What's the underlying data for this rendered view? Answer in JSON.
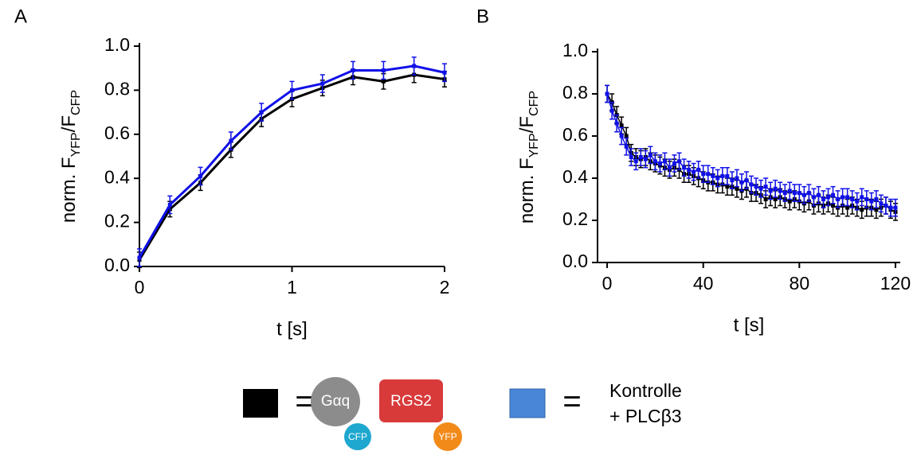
{
  "chart_data": [
    {
      "type": "line",
      "panel": "A",
      "xlabel": "t [s]",
      "ylabel": [
        "norm. F",
        "YFP",
        "/F",
        "CFP"
      ],
      "x": [
        0,
        0.2,
        0.4,
        0.6,
        0.8,
        1.0,
        1.2,
        1.4,
        1.6,
        1.8,
        2.0
      ],
      "xlim": [
        0,
        2
      ],
      "xticks": [
        0,
        1,
        2
      ],
      "ylim": [
        0,
        1
      ],
      "yticks": [
        {
          "value": 0,
          "label": "0.0"
        },
        0.2,
        0.4,
        0.6,
        0.8,
        {
          "value": 1,
          "label": "1.0"
        }
      ],
      "grid": false,
      "series": [
        {
          "color": "#000000",
          "error": 0.035,
          "values": [
            0.03,
            0.26,
            0.38,
            0.53,
            0.67,
            0.76,
            0.81,
            0.86,
            0.84,
            0.87,
            0.85
          ]
        },
        {
          "color": "#1010e8",
          "error": 0.04,
          "values": [
            0.04,
            0.28,
            0.41,
            0.57,
            0.7,
            0.8,
            0.83,
            0.89,
            0.89,
            0.91,
            0.88
          ]
        }
      ]
    },
    {
      "type": "line",
      "panel": "B",
      "xlabel": "t [s]",
      "ylabel": [
        "norm. F",
        "YFP",
        "/F",
        "CFP"
      ],
      "x": [
        0,
        2,
        4,
        6,
        8,
        10,
        12,
        14,
        16,
        18,
        20,
        22,
        24,
        26,
        28,
        30,
        32,
        34,
        36,
        38,
        40,
        42,
        44,
        46,
        48,
        50,
        52,
        54,
        56,
        58,
        60,
        62,
        64,
        66,
        68,
        70,
        72,
        74,
        76,
        78,
        80,
        82,
        84,
        86,
        88,
        90,
        92,
        94,
        96,
        98,
        100,
        102,
        104,
        106,
        108,
        110,
        112,
        114,
        116,
        118,
        120
      ],
      "xlim": [
        -4,
        122
      ],
      "xticks": [
        0,
        40,
        80,
        120
      ],
      "ylim": [
        0,
        1
      ],
      "yticks": [
        {
          "value": 0,
          "label": "0.0"
        },
        0.2,
        0.4,
        0.6,
        0.8,
        {
          "value": 1,
          "label": "1.0"
        }
      ],
      "grid": false,
      "series": [
        {
          "color": "#000000",
          "error": 0.04,
          "values": [
            0.8,
            0.76,
            0.7,
            0.65,
            0.6,
            0.52,
            0.5,
            0.49,
            0.5,
            0.48,
            0.47,
            0.46,
            0.45,
            0.44,
            0.45,
            0.44,
            0.42,
            0.42,
            0.41,
            0.4,
            0.39,
            0.38,
            0.38,
            0.37,
            0.37,
            0.36,
            0.36,
            0.35,
            0.34,
            0.35,
            0.33,
            0.33,
            0.32,
            0.3,
            0.31,
            0.3,
            0.31,
            0.3,
            0.29,
            0.3,
            0.29,
            0.28,
            0.29,
            0.27,
            0.28,
            0.27,
            0.28,
            0.27,
            0.26,
            0.27,
            0.26,
            0.27,
            0.26,
            0.25,
            0.26,
            0.26,
            0.25,
            0.26,
            0.27,
            0.25,
            0.24
          ]
        },
        {
          "color": "#1010e8",
          "error": 0.04,
          "values": [
            0.8,
            0.72,
            0.66,
            0.6,
            0.55,
            0.5,
            0.48,
            0.5,
            0.49,
            0.51,
            0.48,
            0.47,
            0.48,
            0.45,
            0.47,
            0.48,
            0.45,
            0.44,
            0.43,
            0.44,
            0.42,
            0.42,
            0.41,
            0.4,
            0.41,
            0.41,
            0.39,
            0.4,
            0.38,
            0.39,
            0.37,
            0.36,
            0.35,
            0.36,
            0.34,
            0.35,
            0.34,
            0.33,
            0.34,
            0.33,
            0.33,
            0.32,
            0.33,
            0.31,
            0.32,
            0.3,
            0.31,
            0.32,
            0.3,
            0.31,
            0.31,
            0.3,
            0.29,
            0.31,
            0.3,
            0.29,
            0.3,
            0.28,
            0.27,
            0.26,
            0.26
          ]
        }
      ]
    }
  ],
  "legend": {
    "equals": "=",
    "gaq": "Gαq",
    "cfp": "CFP",
    "rgs2": "RGS2",
    "yfp": "YFP",
    "control": "Kontrolle",
    "plc": "+ PLCβ3"
  }
}
